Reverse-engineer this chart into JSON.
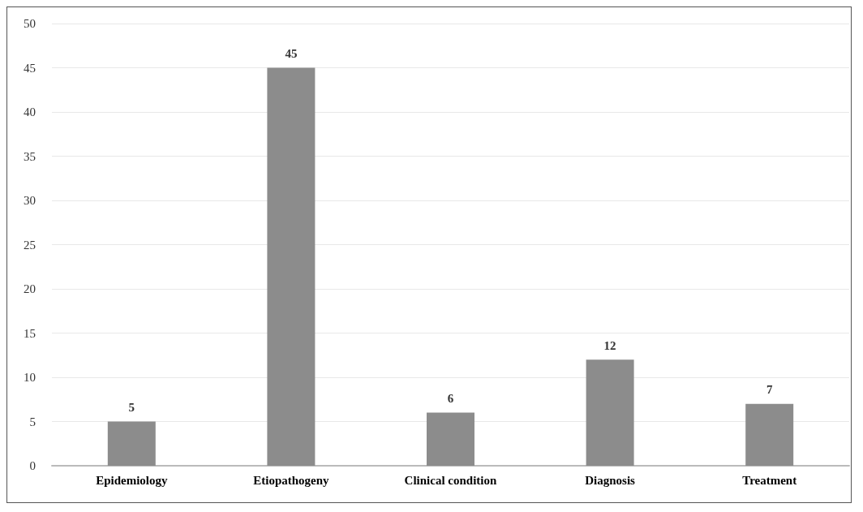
{
  "chart_data": {
    "type": "bar",
    "categories": [
      "Epidemiology",
      "Etiopathogeny",
      "Clinical condition",
      "Diagnosis",
      "Treatment"
    ],
    "values": [
      5,
      45,
      6,
      12,
      7
    ],
    "color": "#8c8c8c",
    "ylim": [
      0,
      50
    ],
    "yticks": [
      0,
      5,
      10,
      15,
      20,
      25,
      30,
      35,
      40,
      45,
      50
    ],
    "grid": "y",
    "data_labels": true
  }
}
